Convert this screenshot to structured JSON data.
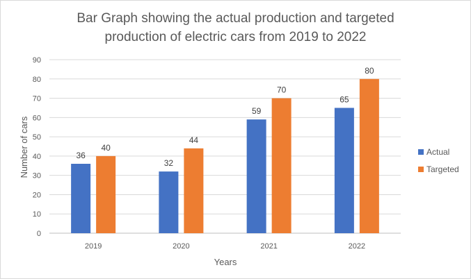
{
  "chart_data": {
    "type": "bar",
    "title_line1": "Bar Graph showing the actual production and targeted",
    "title_line2": "production of electric cars from 2019 to 2022",
    "xlabel": "Years",
    "ylabel": "Number of cars",
    "categories": [
      "2019",
      "2020",
      "2021",
      "2022"
    ],
    "series": [
      {
        "name": "Actual",
        "color": "#4472c4",
        "values": [
          36,
          32,
          59,
          65
        ]
      },
      {
        "name": "Targeted",
        "color": "#ed7d31",
        "values": [
          40,
          44,
          70,
          80
        ]
      }
    ],
    "ylim": [
      0,
      90
    ],
    "yticks": [
      0,
      10,
      20,
      30,
      40,
      50,
      60,
      70,
      80,
      90
    ],
    "grid": true,
    "legend_position": "right",
    "data_labels": true
  }
}
